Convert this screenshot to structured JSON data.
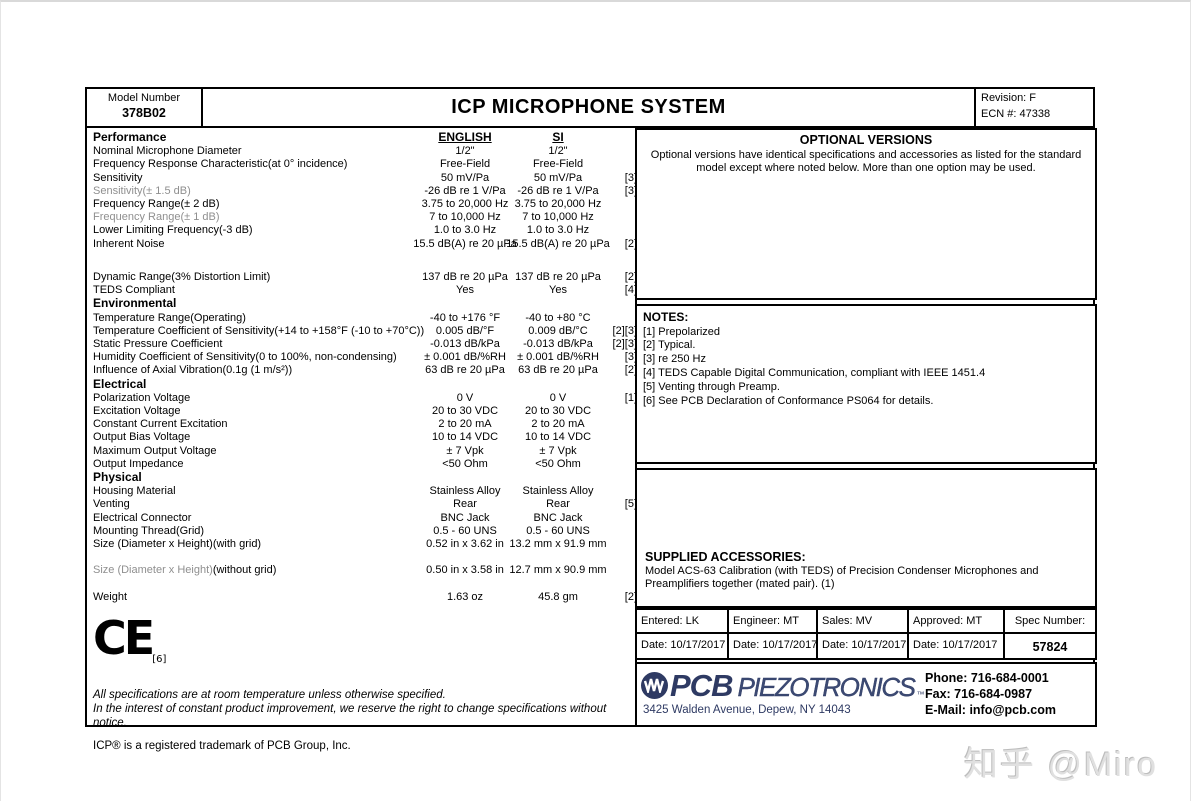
{
  "header": {
    "model_label": "Model Number",
    "model_number": "378B02",
    "title": "ICP MICROPHONE SYSTEM",
    "revision": "Revision: F",
    "ecn": "ECN #: 47338"
  },
  "columns": {
    "english": "ENGLISH",
    "si": "SI"
  },
  "spec": {
    "sections": [
      {
        "name": "Performance",
        "show_column_headers": true,
        "rows": [
          {
            "label": "Nominal Microphone Diameter",
            "english": "1/2\"",
            "si": "1/2\"",
            "ref": ""
          },
          {
            "label": "Frequency Response Characteristic(at 0° incidence)",
            "english": "Free-Field",
            "si": "Free-Field",
            "ref": ""
          },
          {
            "label": "Sensitivity",
            "english": "50 mV/Pa",
            "si": "50 mV/Pa",
            "ref": "[3]"
          },
          {
            "label": "Sensitivity(± 1.5 dB)",
            "gray": true,
            "english": "-26 dB re 1 V/Pa",
            "si": "-26 dB re 1 V/Pa",
            "ref": "[3]"
          },
          {
            "label": "Frequency Range(± 2 dB)",
            "english": "3.75 to 20,000 Hz",
            "si": "3.75 to 20,000 Hz",
            "ref": ""
          },
          {
            "label": "Frequency Range(± 1 dB)",
            "gray": true,
            "english": "7 to 10,000 Hz",
            "si": "7 to 10,000 Hz",
            "ref": ""
          },
          {
            "label": "Lower Limiting Frequency(-3 dB)",
            "english": "1.0 to 3.0 Hz",
            "si": "1.0 to 3.0 Hz",
            "ref": ""
          },
          {
            "label": "Inherent Noise",
            "english": "15.5 dB(A) re 20 µPa",
            "si": "15.5 dB(A) re 20 µPa",
            "ref": "[2]",
            "two_line": true
          },
          {
            "spacer": true
          },
          {
            "label": "Dynamic Range(3% Distortion Limit)",
            "english": "137 dB re 20 µPa",
            "si": "137 dB re 20 µPa",
            "ref": "[2]"
          },
          {
            "label": "TEDS Compliant",
            "english": "Yes",
            "si": "Yes",
            "ref": "[4]"
          }
        ]
      },
      {
        "name": "Environmental",
        "rows": [
          {
            "label": "Temperature Range(Operating)",
            "english": "-40 to +176 °F",
            "si": "-40 to +80 °C",
            "ref": ""
          },
          {
            "label": "Temperature Coefficient of Sensitivity(+14 to +158°F (-10 to +70°C))",
            "english": "0.005 dB/°F",
            "si": "0.009 dB/°C",
            "ref": "[2][3]"
          },
          {
            "label": "Static Pressure Coefficient",
            "english": "-0.013 dB/kPa",
            "si": "-0.013 dB/kPa",
            "ref": "[2][3]"
          },
          {
            "label": "Humidity Coefficient of Sensitivity(0 to 100%, non-condensing)",
            "english": "± 0.001 dB/%RH",
            "si": "± 0.001 dB/%RH",
            "ref": "[3]"
          },
          {
            "label": "Influence of Axial Vibration(0.1g (1 m/s²))",
            "english": "63 dB re 20 µPa",
            "si": "63 dB re 20 µPa",
            "ref": "[2]"
          }
        ]
      },
      {
        "name": "Electrical",
        "rows": [
          {
            "label": "Polarization Voltage",
            "english": "0 V",
            "si": "0 V",
            "ref": "[1]"
          },
          {
            "label": "Excitation Voltage",
            "english": "20 to 30 VDC",
            "si": "20 to 30 VDC",
            "ref": ""
          },
          {
            "label": "Constant Current Excitation",
            "english": "2 to 20 mA",
            "si": "2 to 20 mA",
            "ref": ""
          },
          {
            "label": "Output Bias Voltage",
            "english": "10 to 14 VDC",
            "si": "10 to 14 VDC",
            "ref": ""
          },
          {
            "label": "Maximum Output Voltage",
            "english": "± 7 Vpk",
            "si": "± 7 Vpk",
            "ref": ""
          },
          {
            "label": "Output Impedance",
            "english": "<50 Ohm",
            "si": "<50 Ohm",
            "ref": ""
          }
        ]
      },
      {
        "name": "Physical",
        "rows": [
          {
            "label": "Housing Material",
            "english": "Stainless Alloy",
            "si": "Stainless Alloy",
            "ref": ""
          },
          {
            "label": "Venting",
            "english": "Rear",
            "si": "Rear",
            "ref": "[5]"
          },
          {
            "label": "Electrical Connector",
            "english": "BNC Jack",
            "si": "BNC Jack",
            "ref": ""
          },
          {
            "label": "Mounting Thread(Grid)",
            "english": "0.5 - 60 UNS",
            "si": "0.5 - 60 UNS",
            "ref": ""
          },
          {
            "label": "Size (Diameter x Height)(with grid)",
            "english": "0.52 in x 3.62 in",
            "si": "13.2 mm x 91.9 mm",
            "ref": "",
            "two_line": true
          },
          {
            "label": "Size (Diameter x Height)",
            "label2": "(without grid)",
            "gray": true,
            "english": "0.50 in x 3.58 in",
            "si": "12.7 mm x 90.9 mm",
            "ref": "",
            "two_line": true
          },
          {
            "label": "Weight",
            "english": "1.63 oz",
            "si": "45.8 gm",
            "ref": "[2]"
          }
        ]
      }
    ]
  },
  "ce": {
    "mark": "CE",
    "note": "[6]"
  },
  "disclaimers": {
    "line1": "All specifications are at room temperature unless otherwise specified.",
    "line2": "In the interest of constant product improvement, we reserve the right to change specifications without notice.",
    "trademark": "ICP® is a registered trademark of PCB Group, Inc."
  },
  "optional_versions": {
    "title": "OPTIONAL VERSIONS",
    "body": "Optional versions have identical specifications and accessories as listed for the standard model except where noted below. More than one option may be used."
  },
  "notes": {
    "title": "NOTES:",
    "items": [
      "[1]  Prepolarized",
      "[2]  Typical.",
      "[3]  re 250 Hz",
      "[4]  TEDS Capable Digital Communication, compliant with IEEE 1451.4",
      "[5]  Venting through Preamp.",
      "[6]  See PCB Declaration of Conformance PS064 for details."
    ]
  },
  "accessories": {
    "title": "SUPPLIED ACCESSORIES:",
    "body": "Model ACS-63 Calibration (with TEDS) of Precision Condenser Microphones and Preamplifiers together (mated pair). (1)"
  },
  "signoff": {
    "cells": [
      {
        "label": "Entered: LK",
        "date": "Date: 10/17/2017"
      },
      {
        "label": "Engineer: MT",
        "date": "Date: 10/17/2017"
      },
      {
        "label": "Sales: MV",
        "date": "Date: 10/17/2017"
      },
      {
        "label": "Approved: MT",
        "date": "Date: 10/17/2017"
      }
    ],
    "spec_number_label": "Spec Number:",
    "spec_number": "57824"
  },
  "footer": {
    "logo_pcb": "PCB",
    "logo_piezo": "PIEZOTRONICS",
    "logo_mark": "™",
    "address": "3425 Walden Avenue, Depew, NY 14043",
    "phone": "Phone: 716-684-0001",
    "fax": "Fax: 716-684-0987",
    "email": "E-Mail: info@pcb.com",
    "logo_color": "#2e3a63"
  },
  "watermark": "知乎 @Miro"
}
